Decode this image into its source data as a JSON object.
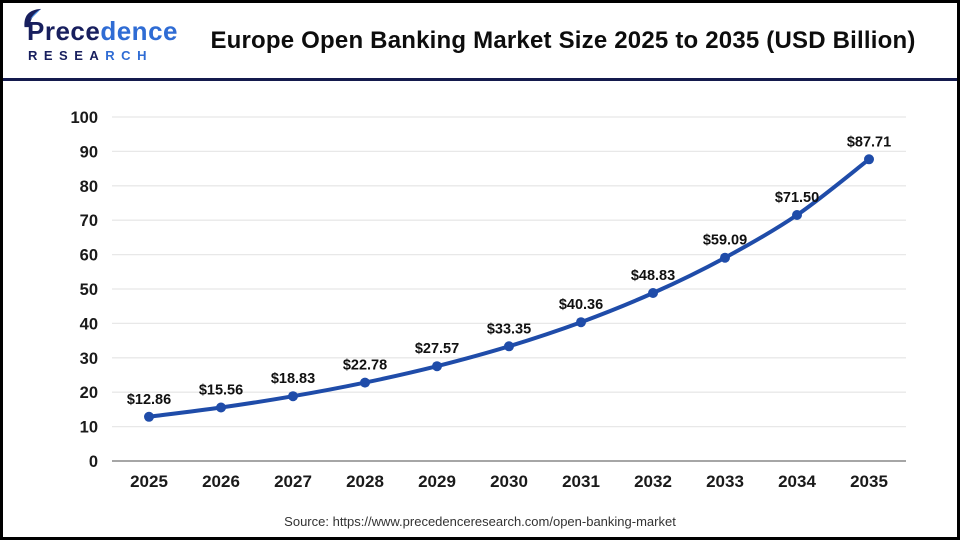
{
  "header": {
    "logo": {
      "line1_left": "Prece",
      "line1_right": "dence",
      "line2_left": "RESEA",
      "line2_right": "RCH"
    }
  },
  "chart_data": {
    "type": "line",
    "title": "Europe Open Banking Market Size 2025 to 2035 (USD Billion)",
    "categories": [
      "2025",
      "2026",
      "2027",
      "2028",
      "2029",
      "2030",
      "2031",
      "2032",
      "2033",
      "2034",
      "2035"
    ],
    "values": [
      12.86,
      15.56,
      18.83,
      22.78,
      27.57,
      33.35,
      40.36,
      48.83,
      59.09,
      71.5,
      87.71
    ],
    "point_labels": [
      "$12.86",
      "$15.56",
      "$18.83",
      "$22.78",
      "$27.57",
      "$33.35",
      "$40.36",
      "$48.83",
      "$59.09",
      "$71.50",
      "$87.71"
    ],
    "xlabel": "",
    "ylabel": "",
    "ylim": [
      0,
      100
    ],
    "ytick_step": 10,
    "yticks": [
      0,
      10,
      20,
      30,
      40,
      50,
      60,
      70,
      80,
      90,
      100
    ],
    "grid": "horizontal",
    "legend": "none",
    "line_color": "#1f4ca9",
    "marker_color": "#1f4ca9",
    "data_label_color": "#111111",
    "axis_label_color": "#1a1a1a",
    "gridline_color": "#e8e8e8",
    "zero_line_color": "#a6a6a6"
  },
  "footer": {
    "source": "Source: https://www.precedenceresearch.com/open-banking-market"
  },
  "colors": {
    "logo_navy": "#181f5e",
    "logo_blue": "#2f6cd4",
    "header_separator": "#141a4d",
    "frame_border": "#000000"
  }
}
